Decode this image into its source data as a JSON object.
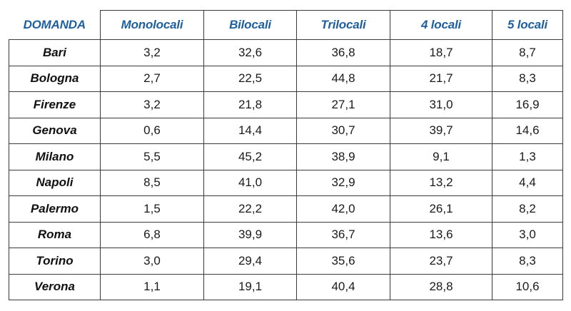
{
  "table": {
    "headers": [
      "DOMANDA",
      "Monolocali",
      "Bilocali",
      "Trilocali",
      "4 locali",
      "5 locali"
    ],
    "rows": [
      [
        "Bari",
        "3,2",
        "32,6",
        "36,8",
        "18,7",
        "8,7"
      ],
      [
        "Bologna",
        "2,7",
        "22,5",
        "44,8",
        "21,7",
        "8,3"
      ],
      [
        "Firenze",
        "3,2",
        "21,8",
        "27,1",
        "31,0",
        "16,9"
      ],
      [
        "Genova",
        "0,6",
        "14,4",
        "30,7",
        "39,7",
        "14,6"
      ],
      [
        "Milano",
        "5,5",
        "45,2",
        "38,9",
        "9,1",
        "1,3"
      ],
      [
        "Napoli",
        "8,5",
        "41,0",
        "32,9",
        "13,2",
        "4,4"
      ],
      [
        "Palermo",
        "1,5",
        "22,2",
        "42,0",
        "26,1",
        "8,2"
      ],
      [
        "Roma",
        "6,8",
        "39,9",
        "36,7",
        "13,6",
        "3,0"
      ],
      [
        "Torino",
        "3,0",
        "29,4",
        "35,6",
        "23,7",
        "8,3"
      ],
      [
        "Verona",
        "1,1",
        "19,1",
        "40,4",
        "28,8",
        "10,6"
      ]
    ]
  },
  "colors": {
    "header_text": "#1f5f9e",
    "cell_text": "#1a1a1a",
    "border": "#3a3a3a"
  }
}
